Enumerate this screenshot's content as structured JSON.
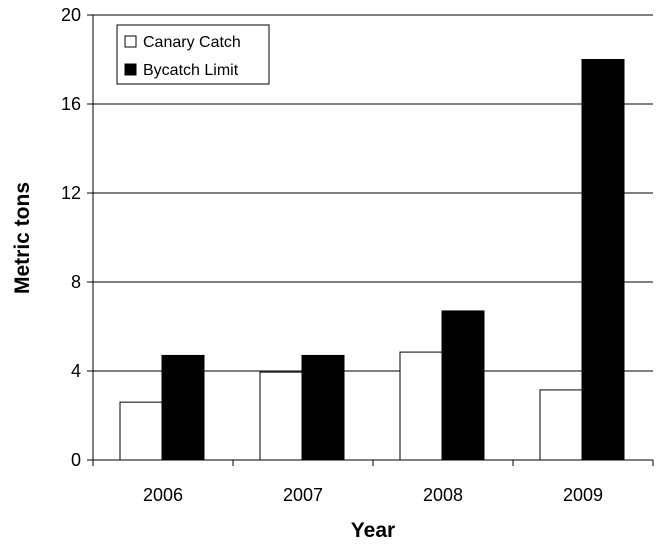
{
  "chart_data": {
    "type": "bar",
    "categories": [
      "2006",
      "2007",
      "2008",
      "2009"
    ],
    "series": [
      {
        "name": "Canary Catch",
        "values": [
          2.6,
          3.95,
          4.85,
          3.15
        ],
        "color": "#ffffff"
      },
      {
        "name": "Bycatch Limit",
        "values": [
          4.7,
          4.7,
          6.7,
          18.0
        ],
        "color": "#000000"
      }
    ],
    "title": "",
    "xlabel": "Year",
    "ylabel": "Metric tons",
    "ylim": [
      0,
      20
    ],
    "yticks": [
      0,
      4,
      8,
      12,
      16,
      20
    ],
    "grid": true,
    "legend_position": "top-left"
  }
}
